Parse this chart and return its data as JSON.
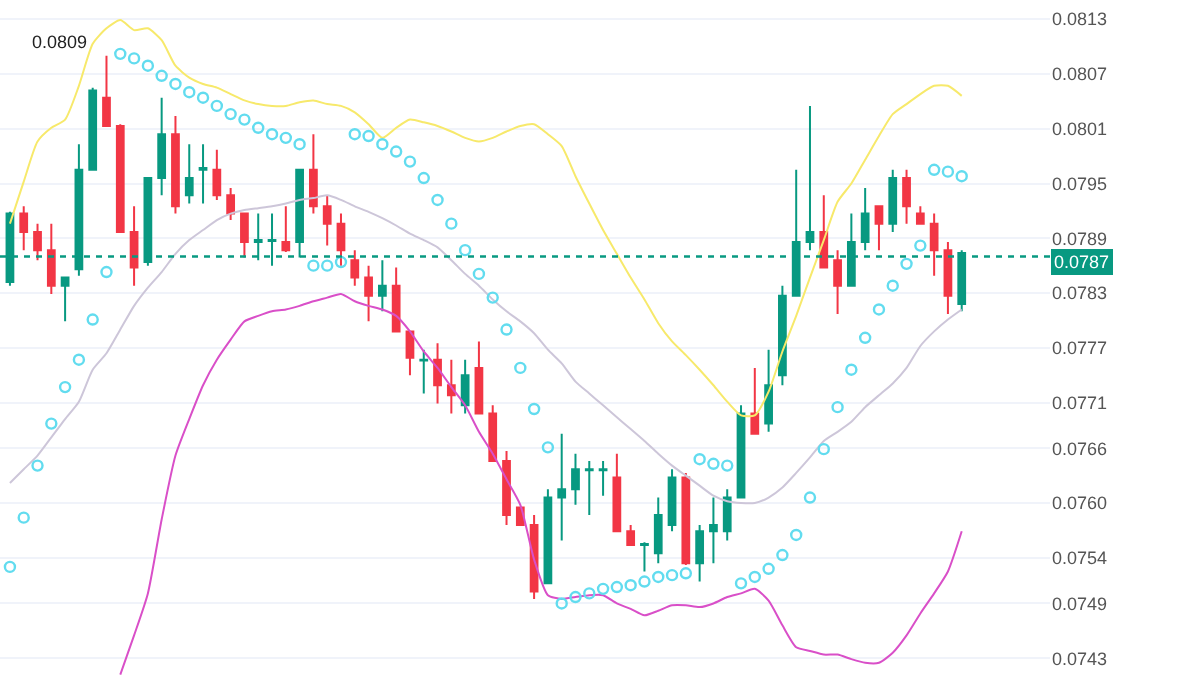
{
  "chart_data": {
    "type": "candlestick",
    "categories": [
      null,
      null,
      null,
      null,
      null,
      null,
      null,
      null,
      null,
      null,
      null,
      null,
      null,
      null,
      null,
      null,
      null,
      null,
      null,
      null,
      null,
      null,
      null,
      null,
      null,
      null,
      null,
      null,
      null,
      null,
      null,
      null,
      null,
      null,
      null,
      null,
      null,
      null,
      null,
      null,
      null,
      null,
      null,
      null,
      null,
      null,
      null,
      null,
      null,
      null,
      null,
      null,
      null,
      null,
      null,
      null,
      null,
      null,
      null,
      null,
      null,
      null,
      null,
      null,
      null,
      null,
      null,
      null,
      null,
      null
    ],
    "ohlc": [
      [
        0.07842,
        0.07919,
        0.07838,
        0.07917
      ],
      [
        0.07917,
        0.07925,
        0.07877,
        0.07897
      ],
      [
        0.07897,
        0.07906,
        0.07866,
        0.07877
      ],
      [
        0.07877,
        0.07906,
        0.07829,
        0.07838
      ],
      [
        0.07838,
        0.07847,
        0.07799,
        0.07847
      ],
      [
        0.07856,
        0.07993,
        0.07849,
        0.07965
      ],
      [
        0.07965,
        0.08055,
        0.07965,
        0.08052
      ],
      [
        0.08044,
        0.0809,
        0.08013,
        0.08013
      ],
      [
        0.08013,
        0.08015,
        0.07897,
        0.07897
      ],
      [
        0.07897,
        0.07925,
        0.07838,
        0.07858
      ],
      [
        0.07864,
        0.07956,
        0.0786,
        0.07956
      ],
      [
        0.07956,
        0.08044,
        0.07937,
        0.08004
      ],
      [
        0.08004,
        0.08024,
        0.07917,
        0.07925
      ],
      [
        0.07937,
        0.07993,
        0.07928,
        0.07956
      ],
      [
        0.07965,
        0.07993,
        0.07928,
        0.07967
      ],
      [
        0.07965,
        0.07987,
        0.07932,
        0.07937
      ],
      [
        0.07937,
        0.07945,
        0.0791,
        0.07917
      ],
      [
        0.07917,
        0.07917,
        0.07869,
        0.07886
      ],
      [
        0.07886,
        0.07917,
        0.07866,
        0.07888
      ],
      [
        0.07887,
        0.07917,
        0.0786,
        0.07888
      ],
      [
        0.07886,
        0.07925,
        0.07875,
        0.07877
      ],
      [
        0.07886,
        0.07965,
        0.07869,
        0.07965
      ],
      [
        0.07965,
        0.08004,
        0.07917,
        0.07925
      ],
      [
        0.07925,
        0.07937,
        0.07882,
        0.07906
      ],
      [
        0.07906,
        0.07917,
        0.0786,
        0.07877
      ],
      [
        0.07866,
        0.07877,
        0.07838,
        0.07847
      ],
      [
        0.07847,
        0.0786,
        0.07799,
        0.07827
      ],
      [
        0.07827,
        0.07866,
        0.0781,
        0.07838
      ],
      [
        0.07838,
        0.07858,
        0.07788,
        0.07788
      ],
      [
        0.07788,
        0.07788,
        0.0774,
        0.07759
      ],
      [
        0.07756,
        0.07768,
        0.0772,
        0.07757
      ],
      [
        0.07757,
        0.07775,
        0.07709,
        0.07729
      ],
      [
        0.07729,
        0.07757,
        0.07698,
        0.07718
      ],
      [
        0.07707,
        0.07757,
        0.07698,
        0.0774
      ],
      [
        0.07748,
        0.07777,
        0.07698,
        0.07698
      ],
      [
        0.07698,
        0.07707,
        0.07646,
        0.07646
      ],
      [
        0.07646,
        0.07657,
        0.07576,
        0.07587
      ],
      [
        0.07595,
        0.07595,
        0.07576,
        0.07576
      ],
      [
        0.07576,
        0.07587,
        0.07495,
        0.07503
      ],
      [
        0.07512,
        0.07615,
        0.07512,
        0.07606
      ],
      [
        0.07606,
        0.07676,
        0.07559,
        0.07615
      ],
      [
        0.07615,
        0.07654,
        0.07598,
        0.07637
      ],
      [
        0.07636,
        0.07646,
        0.07587,
        0.07637
      ],
      [
        0.07636,
        0.07646,
        0.07608,
        0.07637
      ],
      [
        0.07628,
        0.07654,
        0.07569,
        0.07569
      ],
      [
        0.07569,
        0.07576,
        0.07554,
        0.07554
      ],
      [
        0.07554,
        0.07557,
        0.07525,
        0.07555
      ],
      [
        0.07545,
        0.07606,
        0.07534,
        0.07587
      ],
      [
        0.07576,
        0.07637,
        0.07569,
        0.07628
      ],
      [
        0.07628,
        0.07633,
        0.07532,
        0.07534
      ],
      [
        0.07534,
        0.07576,
        0.07514,
        0.07569
      ],
      [
        0.07569,
        0.07606,
        0.07534,
        0.07576
      ],
      [
        0.07569,
        0.07615,
        0.07559,
        0.07606
      ],
      [
        0.07606,
        0.07707,
        0.07606,
        0.07698
      ],
      [
        0.07698,
        0.07748,
        0.07676,
        0.07676
      ],
      [
        0.07687,
        0.07768,
        0.07678,
        0.07729
      ],
      [
        0.0774,
        0.07838,
        0.07729,
        0.07827
      ],
      [
        0.07827,
        0.07965,
        0.07827,
        0.07886
      ],
      [
        0.07886,
        0.08035,
        0.07877,
        0.07897
      ],
      [
        0.07897,
        0.07937,
        0.07858,
        0.07858
      ],
      [
        0.07866,
        0.07877,
        0.07807,
        0.07838
      ],
      [
        0.07838,
        0.07917,
        0.07838,
        0.07886
      ],
      [
        0.07886,
        0.07945,
        0.07877,
        0.07917
      ],
      [
        0.07925,
        0.07925,
        0.07877,
        0.07906
      ],
      [
        0.07906,
        0.07965,
        0.07897,
        0.07956
      ],
      [
        0.07956,
        0.07965,
        0.07906,
        0.07925
      ],
      [
        0.07917,
        0.07925,
        0.07906,
        0.07906
      ],
      [
        0.07906,
        0.07917,
        0.07849,
        0.07877
      ],
      [
        0.07877,
        0.07886,
        0.07807,
        0.07827
      ],
      [
        0.07818,
        0.07877,
        0.0781,
        0.07874
      ]
    ],
    "colors": [
      "#089981",
      "#f23645",
      "#f23645",
      "#f23645",
      "#089981",
      "#089981",
      "#089981",
      "#f23645",
      "#f23645",
      "#f23645",
      "#089981",
      "#089981",
      "#f23645",
      "#089981",
      "#089981",
      "#f23645",
      "#f23645",
      "#f23645",
      "#089981",
      "#089981",
      "#f23645",
      "#089981",
      "#f23645",
      "#f23645",
      "#f23645",
      "#f23645",
      "#f23645",
      "#089981",
      "#f23645",
      "#f23645",
      "#089981",
      "#f23645",
      "#f23645",
      "#089981",
      "#f23645",
      "#f23645",
      "#f23645",
      "#f23645",
      "#f23645",
      "#089981",
      "#089981",
      "#089981",
      "#089981",
      "#089981",
      "#f23645",
      "#f23645",
      "#089981",
      "#089981",
      "#089981",
      "#f23645",
      "#089981",
      "#089981",
      "#089981",
      "#089981",
      "#f23645",
      "#089981",
      "#089981",
      "#089981",
      "#089981",
      "#f23645",
      "#f23645",
      "#089981",
      "#089981",
      "#f23645",
      "#089981",
      "#f23645",
      "#f23645",
      "#f23645",
      "#f23645",
      "#089981"
    ],
    "series": [
      {
        "type": "line",
        "color": "#f7e96b",
        "values": [
          0.07906,
          0.07952,
          0.07996,
          0.08011,
          0.0802,
          0.08057,
          0.08103,
          0.0812,
          0.08129,
          0.08118,
          0.0812,
          0.08107,
          0.08079,
          0.08066,
          0.08059,
          0.08055,
          0.08048,
          0.08041,
          0.08037,
          0.08035,
          0.08035,
          0.08039,
          0.08041,
          0.08037,
          0.08035,
          0.08028,
          0.08015,
          0.08,
          0.08011,
          0.0802,
          0.08017,
          0.08013,
          0.08007,
          0.08,
          0.07996,
          0.08,
          0.08007,
          0.08013,
          0.08015,
          0.08004,
          0.07991,
          0.07958,
          0.07928,
          0.07899,
          0.07873,
          0.07847,
          0.07823,
          0.07797,
          0.07777,
          0.07762,
          0.07746,
          0.07729,
          0.07711,
          0.07696,
          0.07696,
          0.07722,
          0.07766,
          0.07805,
          0.07847,
          0.07888,
          0.0793,
          0.0795,
          0.07976,
          0.08002,
          0.08026,
          0.08037,
          0.08048,
          0.08057,
          0.08057,
          0.08046
        ]
      },
      {
        "type": "line",
        "color": "#cdc6d9",
        "values": [
          0.07622,
          0.07637,
          0.07652,
          0.07672,
          0.07692,
          0.07711,
          0.07746,
          0.07764,
          0.0779,
          0.07816,
          0.07836,
          0.07853,
          0.07873,
          0.07888,
          0.07899,
          0.0791,
          0.07917,
          0.07921,
          0.07923,
          0.07925,
          0.07928,
          0.07932,
          0.07934,
          0.07937,
          0.07932,
          0.07925,
          0.07919,
          0.07912,
          0.07904,
          0.07895,
          0.07888,
          0.0788,
          0.07866,
          0.07851,
          0.07838,
          0.07823,
          0.0781,
          0.07799,
          0.07786,
          0.07768,
          0.07753,
          0.07733,
          0.0772,
          0.07707,
          0.07694,
          0.07681,
          0.07668,
          0.07654,
          0.07641,
          0.0763,
          0.07619,
          0.07608,
          0.07602,
          0.076,
          0.076,
          0.07606,
          0.07617,
          0.07633,
          0.0765,
          0.07668,
          0.07678,
          0.07689,
          0.07705,
          0.07718,
          0.07731,
          0.07748,
          0.07772,
          0.07788,
          0.07801,
          0.07812
        ]
      },
      {
        "type": "line",
        "color": "#d94fc8",
        "values": [
          null,
          null,
          null,
          null,
          null,
          null,
          null,
          null,
          0.07412,
          0.07455,
          0.07501,
          0.07582,
          0.07652,
          0.07692,
          0.07729,
          0.07757,
          0.07779,
          0.07799,
          0.07805,
          0.0781,
          0.07812,
          0.07816,
          0.07821,
          0.07825,
          0.07829,
          0.07821,
          0.07816,
          0.07812,
          0.07805,
          0.07788,
          0.07766,
          0.07748,
          0.07727,
          0.07707,
          0.07678,
          0.07654,
          0.07626,
          0.07598,
          0.07538,
          0.07499,
          0.07495,
          0.07497,
          0.07499,
          0.07499,
          0.0749,
          0.07484,
          0.07477,
          0.07482,
          0.07488,
          0.07488,
          0.07486,
          0.0749,
          0.07497,
          0.07501,
          0.07506,
          0.07493,
          0.07466,
          0.07442,
          0.07438,
          0.07434,
          0.07434,
          0.07429,
          0.07425,
          0.07425,
          0.07436,
          0.07455,
          0.07479,
          0.07501,
          0.07525,
          0.07569
        ]
      },
      {
        "type": "scatter",
        "marker": "circle",
        "color": "#62dcef",
        "values": [
          0.0753,
          0.07584,
          0.07641,
          0.07687,
          0.07727,
          0.07757,
          0.07801,
          0.07853,
          0.08092,
          0.08087,
          0.08079,
          0.08068,
          0.08059,
          0.0805,
          0.08044,
          0.08035,
          0.08026,
          0.0802,
          0.08011,
          0.08004,
          0.08,
          0.07993,
          0.0786,
          0.0786,
          0.07864,
          0.08004,
          0.08002,
          0.07993,
          0.07985,
          0.07974,
          0.07956,
          0.07932,
          0.07906,
          0.07877,
          0.07851,
          0.07825,
          0.0779,
          0.07748,
          0.07703,
          0.07661,
          0.0749,
          0.07497,
          0.07501,
          0.07506,
          0.07508,
          0.0751,
          0.07514,
          0.07519,
          0.07521,
          0.07523,
          0.07648,
          0.07643,
          0.07641,
          0.07512,
          0.07519,
          0.07528,
          0.07543,
          0.07565,
          0.07606,
          0.07659,
          0.07705,
          0.07746,
          0.07781,
          0.07812,
          0.07838,
          0.07862,
          0.07882,
          0.07965,
          0.07963,
          0.07958
        ]
      }
    ],
    "ylim": [
      0.07393,
      0.08151
    ],
    "yticks": [
      {
        "value": 0.0813,
        "label": "0.0813"
      },
      {
        "value": 0.0807,
        "label": "0.0807"
      },
      {
        "value": 0.0801,
        "label": "0.0801"
      },
      {
        "value": 0.0795,
        "label": "0.0795"
      },
      {
        "value": 0.0789,
        "label": "0.0789"
      },
      {
        "value": 0.0783,
        "label": "0.0783"
      },
      {
        "value": 0.0777,
        "label": "0.0777"
      },
      {
        "value": 0.0771,
        "label": "0.0771"
      },
      {
        "value": 0.0766,
        "label": "0.0766"
      },
      {
        "value": 0.076,
        "label": "0.0760"
      },
      {
        "value": 0.0754,
        "label": "0.0754"
      },
      {
        "value": 0.0749,
        "label": "0.0749"
      },
      {
        "value": 0.0743,
        "label": "0.0743"
      }
    ],
    "ref_lines": [
      {
        "axis": "y",
        "value": 0.0787,
        "label": "0.0787",
        "color": "#089981",
        "line_style": "dotted"
      }
    ],
    "annotations": [
      "0.0809"
    ],
    "grid": "y"
  }
}
